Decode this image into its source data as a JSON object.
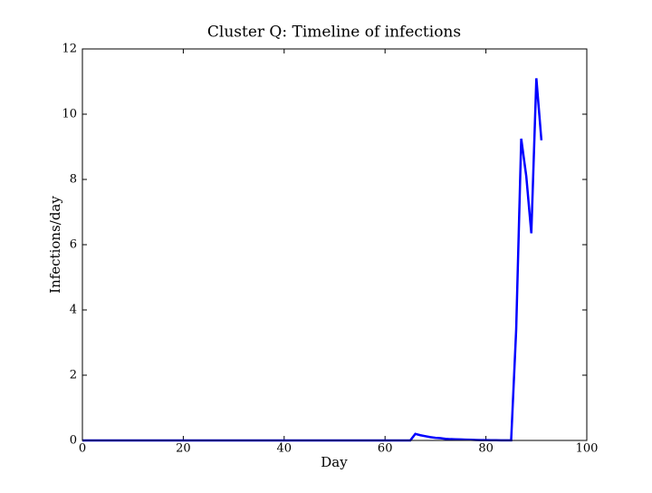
{
  "chart_data": {
    "type": "line",
    "title": "Cluster Q: Timeline of infections",
    "x_label": "Day",
    "y_label": "Infections/day",
    "x": [
      0,
      65,
      66,
      67,
      68,
      69,
      70,
      71,
      72,
      73,
      74,
      75,
      76,
      77,
      78,
      79,
      80,
      81,
      82,
      83,
      84,
      85,
      86,
      87,
      88,
      89,
      90,
      91
    ],
    "series": [
      {
        "color": "#0000ff",
        "values": [
          0,
          0,
          0.2,
          0.16,
          0.13,
          0.1,
          0.08,
          0.07,
          0.05,
          0.04,
          0.035,
          0.03,
          0.025,
          0.02,
          0.015,
          0.012,
          0.01,
          0.008,
          0.006,
          0.005,
          0.004,
          0.003,
          3.4,
          9.25,
          8.1,
          6.35,
          11.1,
          9.2
        ]
      }
    ],
    "xlim": [
      0,
      100
    ],
    "xticks": [
      0,
      20,
      40,
      60,
      80,
      100
    ],
    "ylim": [
      0,
      12
    ],
    "yticks": [
      0,
      2,
      4,
      6,
      8,
      10,
      12
    ]
  }
}
